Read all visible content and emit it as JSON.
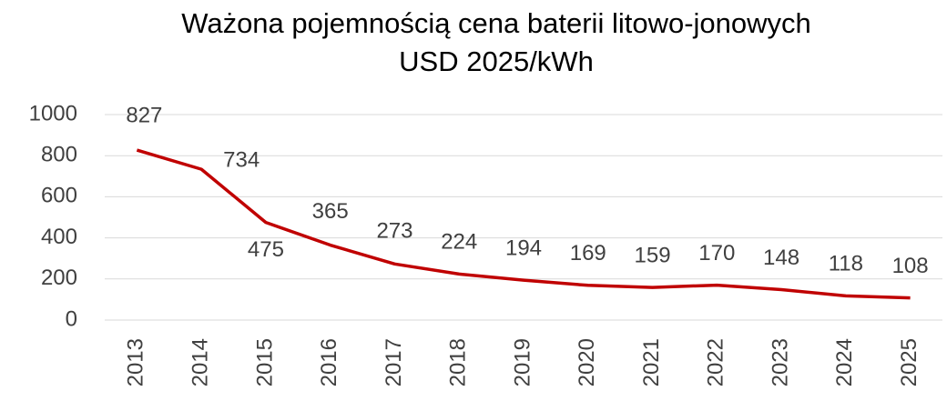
{
  "chart_data": {
    "type": "line",
    "title": "Ważona pojemnością cena baterii litowo-jonowych",
    "subtitle": "USD 2025/kWh",
    "categories": [
      "2013",
      "2014",
      "2015",
      "2016",
      "2017",
      "2018",
      "2019",
      "2020",
      "2021",
      "2022",
      "2023",
      "2024",
      "2025"
    ],
    "values": [
      827,
      734,
      475,
      365,
      273,
      224,
      194,
      169,
      159,
      170,
      148,
      118,
      108
    ],
    "color": "#c00000",
    "ylim": [
      0,
      1000
    ],
    "yticks": [
      0,
      200,
      400,
      600,
      800,
      1000
    ],
    "grid": true
  }
}
